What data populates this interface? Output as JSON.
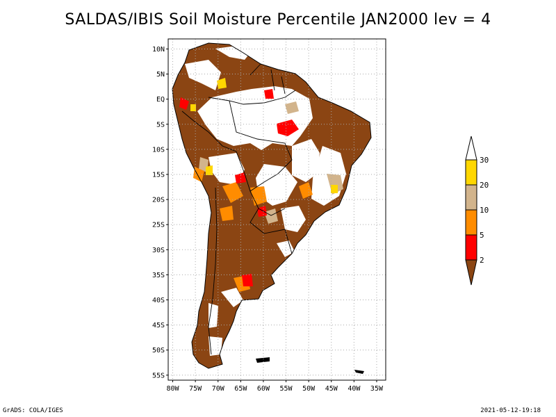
{
  "title": "SALDAS/IBIS Soil Moisture Percentile JAN2000 lev = 4",
  "map": {
    "lat_labels": [
      "10N",
      "5N",
      "EQ",
      "5S",
      "10S",
      "15S",
      "20S",
      "25S",
      "30S",
      "35S",
      "40S",
      "45S",
      "50S",
      "55S"
    ],
    "lat_values": [
      10,
      5,
      0,
      -5,
      -10,
      -15,
      -20,
      -25,
      -30,
      -35,
      -40,
      -45,
      -50,
      -55
    ],
    "lon_labels": [
      "80W",
      "75W",
      "70W",
      "65W",
      "60W",
      "55W",
      "50W",
      "45W",
      "40W",
      "35W"
    ],
    "lon_values": [
      -80,
      -75,
      -70,
      -65,
      -60,
      -55,
      -50,
      -45,
      -40,
      -35
    ],
    "extent": {
      "lon_min": -81,
      "lon_max": -33,
      "lat_min": -56,
      "lat_max": 12
    }
  },
  "legend": {
    "labels": [
      "2",
      "5",
      "10",
      "20",
      "30"
    ],
    "colors": [
      "#8b4513",
      "#ff0000",
      "#ff8c00",
      "#d2b48c",
      "#ffd700",
      "#ffffff"
    ]
  },
  "footer": {
    "left": "GrADS: COLA/IGES",
    "right": "2021-05-12-19:18"
  }
}
